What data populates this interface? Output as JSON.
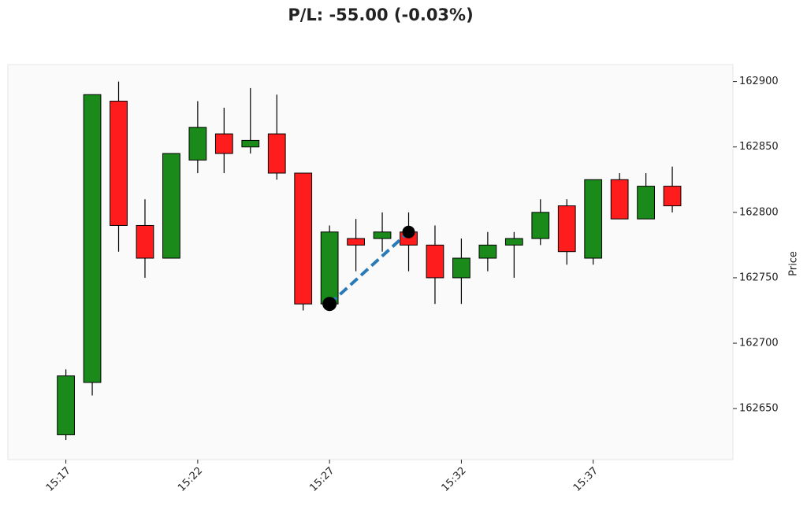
{
  "chart_data": {
    "type": "candlestick",
    "title": "P/L: -55.00 (-0.03%)",
    "y_label": "Price",
    "x": [
      "15:17",
      "15:18",
      "15:19",
      "15:20",
      "15:21",
      "15:22",
      "15:23",
      "15:24",
      "15:25",
      "15:26",
      "15:27",
      "15:28",
      "15:29",
      "15:30",
      "15:31",
      "15:32",
      "15:33",
      "15:34",
      "15:35",
      "15:36",
      "15:37",
      "15:38",
      "15:39",
      "15:40"
    ],
    "open": [
      162630,
      162670,
      162885,
      162790,
      162765,
      162840,
      162860,
      162850,
      162860,
      162830,
      162730,
      162780,
      162780,
      162785,
      162775,
      162750,
      162765,
      162775,
      162780,
      162805,
      162765,
      162825,
      162795,
      162820
    ],
    "high": [
      162680,
      162890,
      162900,
      162810,
      162845,
      162885,
      162880,
      162895,
      162890,
      162830,
      162790,
      162795,
      162800,
      162800,
      162790,
      162780,
      162785,
      162785,
      162810,
      162810,
      162825,
      162830,
      162830,
      162835
    ],
    "low": [
      162626,
      162660,
      162770,
      162750,
      162765,
      162830,
      162830,
      162845,
      162825,
      162725,
      162730,
      162755,
      162770,
      162755,
      162730,
      162730,
      162755,
      162750,
      162775,
      162760,
      162760,
      162795,
      162795,
      162800
    ],
    "close": [
      162675,
      162890,
      162790,
      162765,
      162845,
      162865,
      162845,
      162855,
      162830,
      162730,
      162785,
      162775,
      162785,
      162775,
      162750,
      162765,
      162775,
      162780,
      162800,
      162770,
      162825,
      162795,
      162820,
      162805
    ],
    "up_color": "#1a8a1a",
    "down_color": "#ff1c1c",
    "trade": {
      "entry": {
        "x": "15:27",
        "price": 162730
      },
      "exit": {
        "x": "15:30",
        "price": 162785
      },
      "color": "#2a7ab8"
    },
    "xlim": [
      -2.2,
      25.3
    ],
    "xticks": [
      {
        "value": 0,
        "label": "15:17"
      },
      {
        "value": 5,
        "label": "15:22"
      },
      {
        "value": 10,
        "label": "15:27"
      },
      {
        "value": 15,
        "label": "15:32"
      },
      {
        "value": 20,
        "label": "15:37"
      }
    ],
    "ylim": [
      162611,
      162913
    ],
    "yticks": [
      162650,
      162700,
      162750,
      162800,
      162850,
      162900
    ]
  }
}
